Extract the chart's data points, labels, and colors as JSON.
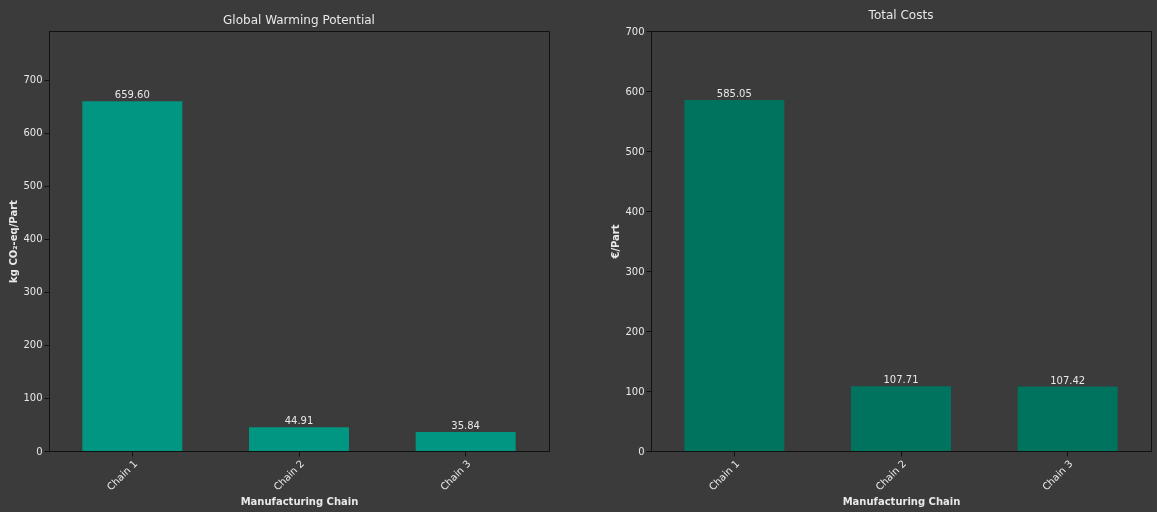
{
  "chart_data": [
    {
      "type": "bar",
      "title": "Global Warming Potential",
      "xlabel": "Manufacturing Chain",
      "ylabel": "kg CO₂-eq/Part",
      "categories": [
        "Chain 1",
        "Chain 2",
        "Chain 3"
      ],
      "values": [
        659.6,
        44.91,
        35.84
      ],
      "value_labels": [
        "659.60",
        "44.91",
        "35.84"
      ],
      "color": "#009682",
      "ylim": [
        0,
        792
      ],
      "yticks": [
        0,
        100,
        200,
        300,
        400,
        500,
        600,
        700
      ],
      "grid": false
    },
    {
      "type": "bar",
      "title": "Total Costs",
      "xlabel": "Manufacturing Chain",
      "ylabel": "€/Part",
      "categories": [
        "Chain 1",
        "Chain 2",
        "Chain 3"
      ],
      "values": [
        585.05,
        107.71,
        107.42
      ],
      "value_labels": [
        "585.05",
        "107.71",
        "107.42"
      ],
      "color": "#00735f",
      "ylim": [
        0,
        700
      ],
      "yticks": [
        0,
        100,
        200,
        300,
        400,
        500,
        600,
        700
      ],
      "grid": false
    }
  ]
}
